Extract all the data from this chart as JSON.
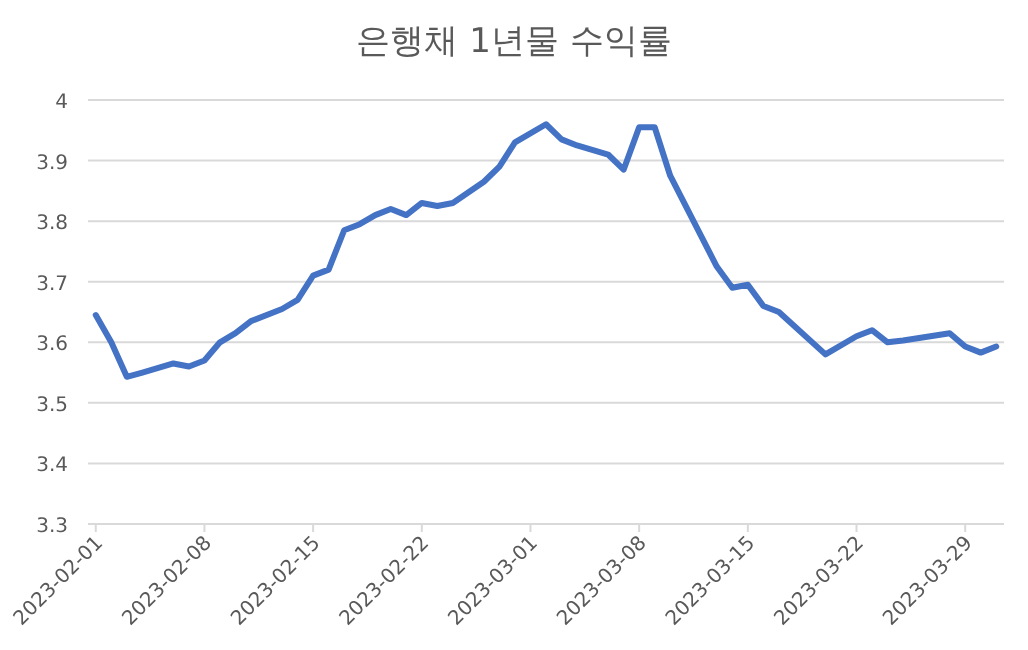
{
  "chart_data": {
    "type": "line",
    "title": "은행채 1년물 수익률",
    "x": [
      "2023-02-01",
      "2023-02-02",
      "2023-02-03",
      "2023-02-04",
      "2023-02-06",
      "2023-02-07",
      "2023-02-08",
      "2023-02-09",
      "2023-02-10",
      "2023-02-11",
      "2023-02-13",
      "2023-02-14",
      "2023-02-15",
      "2023-02-16",
      "2023-02-17",
      "2023-02-18",
      "2023-02-19",
      "2023-02-20",
      "2023-02-21",
      "2023-02-22",
      "2023-02-23",
      "2023-02-24",
      "2023-02-26",
      "2023-02-27",
      "2023-02-28",
      "2023-03-02",
      "2023-03-03",
      "2023-03-04",
      "2023-03-06",
      "2023-03-07",
      "2023-03-08",
      "2023-03-09",
      "2023-03-10",
      "2023-03-13",
      "2023-03-14",
      "2023-03-15",
      "2023-03-16",
      "2023-03-17",
      "2023-03-20",
      "2023-03-22",
      "2023-03-23",
      "2023-03-24",
      "2023-03-25",
      "2023-03-28",
      "2023-03-29",
      "2023-03-30",
      "2023-03-31"
    ],
    "series": [
      {
        "color": "#4472c4",
        "values": [
          3.645,
          3.6,
          3.543,
          3.55,
          3.565,
          3.56,
          3.57,
          3.6,
          3.615,
          3.635,
          3.655,
          3.67,
          3.71,
          3.72,
          3.785,
          3.795,
          3.81,
          3.82,
          3.81,
          3.83,
          3.825,
          3.83,
          3.865,
          3.89,
          3.93,
          3.96,
          3.935,
          3.925,
          3.91,
          3.885,
          3.955,
          3.955,
          3.875,
          3.725,
          3.69,
          3.695,
          3.66,
          3.65,
          3.58,
          3.61,
          3.62,
          3.6,
          3.603,
          3.615,
          3.593,
          3.583,
          3.593
        ]
      }
    ],
    "xlim": [
      "2023-01-31T12:00",
      "2023-03-31T12:00"
    ],
    "xticks": [
      {
        "value": "2023-02-01",
        "label": "2023-02-01"
      },
      {
        "value": "2023-02-08",
        "label": "2023-02-08"
      },
      {
        "value": "2023-02-15",
        "label": "2023-02-15"
      },
      {
        "value": "2023-02-22",
        "label": "2023-02-22"
      },
      {
        "value": "2023-03-01",
        "label": "2023-03-01"
      },
      {
        "value": "2023-03-08",
        "label": "2023-03-08"
      },
      {
        "value": "2023-03-15",
        "label": "2023-03-15"
      },
      {
        "value": "2023-03-22",
        "label": "2023-03-22"
      },
      {
        "value": "2023-03-29",
        "label": "2023-03-29"
      }
    ],
    "ylim": [
      3.3,
      4
    ],
    "yticks": [
      3.3,
      3.4,
      3.5,
      3.6,
      3.7,
      3.8,
      3.9,
      4
    ],
    "grid": "y",
    "marker": "none",
    "line_style": "solid"
  }
}
